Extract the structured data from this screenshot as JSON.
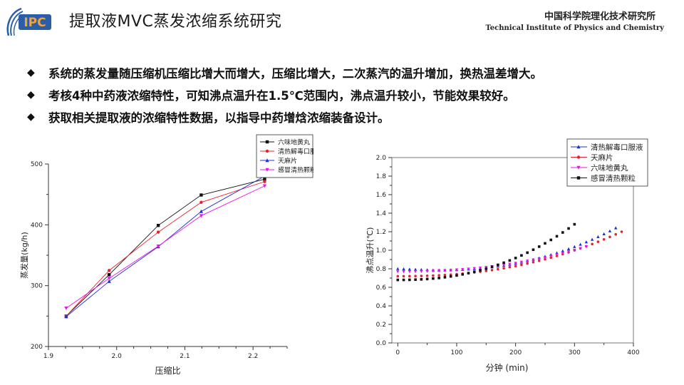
{
  "header": {
    "logo_text": "IPC",
    "title": "提取液MVC蒸发浓缩系统研究",
    "institute_cn": "中国科学院理化技术研究所",
    "institute_en": "Technical Institute of Physics and Chemistry"
  },
  "bullets": [
    "系统的蒸发量随压缩机压缩比增大而增大，压缩比增大，二次蒸汽的温升增加，换热温差增大。",
    "考核4种中药液浓缩特性，可知沸点温升在1.5℃范围内，沸点温升较小，节能效果较好。",
    "获取相关提取液的浓缩特性数据，以指导中药增焓浓缩装备设计。"
  ],
  "colors": {
    "accent_orange": "#e8751a",
    "logo_blue": "#2a5fa8",
    "series_black": "#111111",
    "series_red": "#e8202a",
    "series_blue": "#1f2fd8",
    "series_magenta": "#ee11ee"
  },
  "chart_data": [
    {
      "type": "line",
      "xlabel": "压缩比",
      "ylabel": "蒸发量(kg/h)",
      "xlim": [
        1.9,
        2.25
      ],
      "ylim": [
        200,
        500
      ],
      "xticks": [
        "1.9",
        "2.0",
        "2.1",
        "2.2"
      ],
      "yticks": [
        "200",
        "300",
        "400",
        "500"
      ],
      "legend": "top-right",
      "series": [
        {
          "name": "六味地黄丸",
          "color": "#111111",
          "marker": "square",
          "x": [
            1.926,
            1.989,
            2.061,
            2.124,
            2.217
          ],
          "y": [
            250,
            318,
            399,
            449,
            475
          ]
        },
        {
          "name": "清热解毒口服液",
          "color": "#e8202a",
          "marker": "circle",
          "x": [
            1.926,
            1.989,
            2.061,
            2.124,
            2.217
          ],
          "y": [
            250,
            325,
            388,
            437,
            471
          ]
        },
        {
          "name": "天麻片",
          "color": "#1f2fd8",
          "marker": "triangle",
          "x": [
            1.926,
            1.989,
            2.061,
            2.124,
            2.217
          ],
          "y": [
            249,
            307,
            364,
            422,
            480
          ]
        },
        {
          "name": "感冒清热颗粒",
          "color": "#ee11ee",
          "marker": "triangle-down",
          "x": [
            1.926,
            1.989,
            2.061,
            2.124,
            2.217
          ],
          "y": [
            263,
            312,
            365,
            415,
            464
          ]
        }
      ]
    },
    {
      "type": "scatter",
      "xlabel": "分钟 (min)",
      "ylabel": "沸点温升(℃)",
      "xlim": [
        -10,
        400
      ],
      "ylim": [
        0,
        2.0
      ],
      "xticks": [
        "0",
        "100",
        "200",
        "300",
        "400"
      ],
      "yticks": [
        "0.0",
        "0.2",
        "0.4",
        "0.6",
        "0.8",
        "1.0",
        "1.2",
        "1.4",
        "1.6",
        "1.8",
        "2.0"
      ],
      "legend": "top-right",
      "series": [
        {
          "name": "清热解毒口服液",
          "color": "#1f2fd8",
          "marker": "triangle",
          "x_start": 0,
          "x_step": 10,
          "x_end": 370,
          "y_start": 0.8,
          "y_min": 0.785,
          "y_min_at": 60,
          "y_end": 1.24
        },
        {
          "name": "天麻片",
          "color": "#e8202a",
          "marker": "circle",
          "x_start": 0,
          "x_step": 10,
          "x_end": 380,
          "y_start": 0.72,
          "y_min": 0.72,
          "y_min_at": 0,
          "y_end": 1.2
        },
        {
          "name": "六味地黄丸",
          "color": "#ee11ee",
          "marker": "triangle-down",
          "x_start": 0,
          "x_step": 10,
          "x_end": 320,
          "y_start": 0.77,
          "y_min": 0.77,
          "y_min_at": 0,
          "y_end": 1.04
        },
        {
          "name": "感冒清热颗粒",
          "color": "#111111",
          "marker": "square",
          "x_start": 0,
          "x_step": 10,
          "x_end": 300,
          "y_start": 0.68,
          "y_min": 0.68,
          "y_min_at": 0,
          "y_end": 1.28
        }
      ]
    }
  ]
}
